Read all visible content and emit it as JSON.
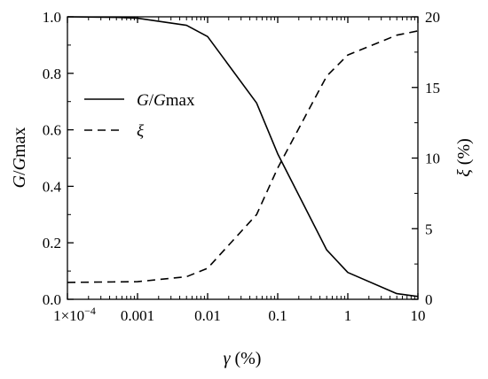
{
  "chart_data": {
    "type": "line",
    "x_scale": "log",
    "xlim": [
      0.0001,
      10
    ],
    "x_ticks": [
      {
        "value": 0.0001,
        "label": "1×10"
      },
      {
        "value": 0.001,
        "label": "0.001"
      },
      {
        "value": 0.01,
        "label": "0.01"
      },
      {
        "value": 0.1,
        "label": "0.1"
      },
      {
        "value": 1,
        "label": "1"
      },
      {
        "value": 10,
        "label": "10"
      }
    ],
    "x_tick_exponent": "−4",
    "xlabel": {
      "symbol": "γ",
      "unit": " (%)"
    },
    "ylabel_left": {
      "part1": "G",
      "part2": "/",
      "part3": "G",
      "part4": "max"
    },
    "ylabel_right": {
      "symbol": "ξ",
      "unit": " (%)"
    },
    "ylim_left": [
      0,
      1.0
    ],
    "ylim_right": [
      0,
      20
    ],
    "y_left_ticks": [
      "0.0",
      "0.2",
      "0.4",
      "0.6",
      "0.8",
      "1.0"
    ],
    "y_right_ticks": [
      "0",
      "5",
      "10",
      "15",
      "20"
    ],
    "grid": false,
    "legend_position": "upper-left",
    "series": [
      {
        "name": "G/Gmax",
        "legend": {
          "part1": "G",
          "part2": "/",
          "part3": "G",
          "part4": "max"
        },
        "axis": "left",
        "style": "solid",
        "x": [
          0.0001,
          0.0005,
          0.001,
          0.005,
          0.01,
          0.05,
          0.1,
          0.5,
          1,
          5,
          10
        ],
        "y": [
          1.0,
          0.998,
          0.995,
          0.97,
          0.93,
          0.695,
          0.515,
          0.175,
          0.095,
          0.02,
          0.01
        ]
      },
      {
        "name": "ξ",
        "legend": {
          "part1": "ξ"
        },
        "axis": "right",
        "style": "dashed",
        "x": [
          0.0001,
          0.001,
          0.005,
          0.01,
          0.05,
          0.1,
          0.5,
          1,
          5,
          10
        ],
        "y": [
          1.2,
          1.25,
          1.6,
          2.2,
          6.0,
          9.3,
          15.8,
          17.3,
          18.7,
          19.0
        ]
      }
    ]
  }
}
